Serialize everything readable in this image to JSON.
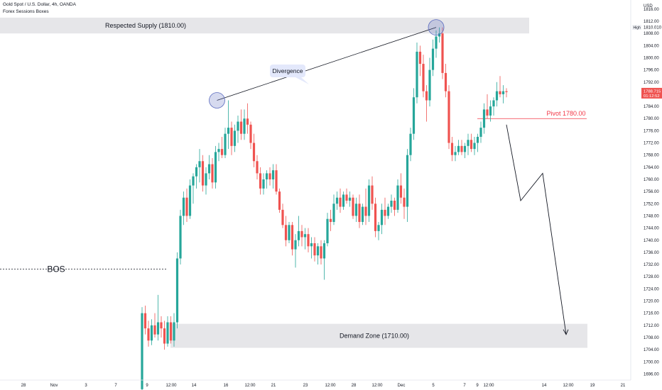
{
  "header": {
    "symbol": "Gold Spot / U.S. Dollar, 4h, OANDA",
    "indicator": "Forex Sessions Boxes"
  },
  "price_axis": {
    "currency": "USD",
    "high_tag": "High",
    "high_value": "1810.010",
    "last_price": "1788.715",
    "countdown": "01:12:52"
  },
  "colors": {
    "up": "#26a69a",
    "down": "#ef5350",
    "zone": "#e6e6e9",
    "pivot": "#f23645",
    "circle": "#5b6bbf",
    "label_box": "#e3e8fb"
  },
  "chart_data": {
    "type": "candlestick",
    "title": "Gold Spot / U.S. Dollar, 4h, OANDA",
    "ylim": [
      1694,
      1819
    ],
    "y_ticks": [
      1696,
      1700,
      1704,
      1708,
      1712,
      1716,
      1720,
      1724,
      1728,
      1732,
      1736,
      1740,
      1744,
      1748,
      1752,
      1756,
      1760,
      1764,
      1768,
      1772,
      1776,
      1780,
      1784,
      1788,
      1792,
      1796,
      1800,
      1804,
      1808,
      1812,
      1816
    ],
    "x_ticks": [
      "28",
      "Nov",
      "3",
      "7",
      "9",
      "12:00",
      "14",
      "16",
      "12:00",
      "21",
      "23",
      "12:00",
      "28",
      "12:00",
      "Dec",
      "5",
      "7",
      "9",
      "12:00",
      "14",
      "12:00",
      "19",
      "21"
    ],
    "candles": [
      [
        1691.0,
        1718.0,
        1689.0,
        1716.0
      ],
      [
        1716.0,
        1718.5,
        1709.0,
        1711.0
      ],
      [
        1711.0,
        1713.5,
        1705.0,
        1707.0
      ],
      [
        1707.0,
        1714.0,
        1705.5,
        1712.0
      ],
      [
        1712.0,
        1716.0,
        1708.0,
        1709.0
      ],
      [
        1709.0,
        1722.0,
        1707.0,
        1713.0
      ],
      [
        1713.0,
        1715.0,
        1708.0,
        1711.0
      ],
      [
        1711.0,
        1713.5,
        1704.0,
        1706.0
      ],
      [
        1706.0,
        1715.0,
        1705.0,
        1713.0
      ],
      [
        1713.0,
        1715.0,
        1706.0,
        1707.0
      ],
      [
        1707.0,
        1716.0,
        1705.0,
        1713.0
      ],
      [
        1713.0,
        1736.0,
        1711.0,
        1734.0
      ],
      [
        1734.0,
        1750.0,
        1732.0,
        1748.0
      ],
      [
        1748.0,
        1756.0,
        1745.0,
        1754.0
      ],
      [
        1754.0,
        1757.0,
        1746.0,
        1748.0
      ],
      [
        1748.0,
        1760.0,
        1747.0,
        1758.0
      ],
      [
        1758.0,
        1762.0,
        1752.0,
        1761.0
      ],
      [
        1761.0,
        1765.0,
        1757.0,
        1764.0
      ],
      [
        1764.0,
        1770.0,
        1759.0,
        1766.0
      ],
      [
        1766.0,
        1768.0,
        1756.0,
        1758.0
      ],
      [
        1758.0,
        1764.0,
        1755.0,
        1762.0
      ],
      [
        1762.0,
        1768.0,
        1760.0,
        1765.0
      ],
      [
        1765.0,
        1767.0,
        1757.0,
        1759.0
      ],
      [
        1759.0,
        1771.0,
        1757.0,
        1769.0
      ],
      [
        1769.0,
        1772.0,
        1766.0,
        1770.0
      ],
      [
        1770.0,
        1774.0,
        1767.0,
        1768.0
      ],
      [
        1768.0,
        1777.0,
        1767.0,
        1775.0
      ],
      [
        1775.0,
        1786.0,
        1770.0,
        1777.0
      ],
      [
        1777.0,
        1779.0,
        1768.0,
        1771.0
      ],
      [
        1771.0,
        1778.0,
        1769.0,
        1776.0
      ],
      [
        1776.0,
        1781.0,
        1772.0,
        1779.0
      ],
      [
        1779.0,
        1783.0,
        1773.0,
        1775.0
      ],
      [
        1775.0,
        1783.0,
        1773.0,
        1780.0
      ],
      [
        1780.0,
        1785.0,
        1775.0,
        1778.0
      ],
      [
        1778.0,
        1779.0,
        1770.0,
        1772.0
      ],
      [
        1772.0,
        1775.0,
        1764.0,
        1766.0
      ],
      [
        1766.0,
        1768.0,
        1760.0,
        1762.0
      ],
      [
        1762.0,
        1764.0,
        1755.0,
        1757.0
      ],
      [
        1757.0,
        1762.0,
        1755.0,
        1760.0
      ],
      [
        1760.0,
        1763.0,
        1757.0,
        1762.0
      ],
      [
        1762.0,
        1764.0,
        1758.0,
        1760.0
      ],
      [
        1760.0,
        1765.0,
        1757.0,
        1763.0
      ],
      [
        1763.0,
        1765.0,
        1755.0,
        1756.0
      ],
      [
        1756.0,
        1757.0,
        1749.0,
        1750.0
      ],
      [
        1750.0,
        1752.0,
        1744.0,
        1745.0
      ],
      [
        1745.0,
        1748.0,
        1738.0,
        1740.0
      ],
      [
        1740.0,
        1746.0,
        1739.0,
        1745.0
      ],
      [
        1745.0,
        1746.0,
        1735.0,
        1737.0
      ],
      [
        1737.0,
        1742.0,
        1731.0,
        1740.0
      ],
      [
        1740.0,
        1748.0,
        1738.0,
        1743.0
      ],
      [
        1743.0,
        1745.0,
        1738.0,
        1741.0
      ],
      [
        1741.0,
        1744.0,
        1737.0,
        1742.0
      ],
      [
        1742.0,
        1744.0,
        1736.0,
        1738.0
      ],
      [
        1738.0,
        1741.0,
        1734.0,
        1739.0
      ],
      [
        1739.0,
        1741.0,
        1733.0,
        1735.0
      ],
      [
        1735.0,
        1739.0,
        1732.0,
        1738.0
      ],
      [
        1738.0,
        1740.0,
        1732.0,
        1734.0
      ],
      [
        1734.0,
        1740.0,
        1727.0,
        1739.0
      ],
      [
        1739.0,
        1749.0,
        1738.0,
        1747.0
      ],
      [
        1747.0,
        1750.0,
        1743.0,
        1746.0
      ],
      [
        1746.0,
        1755.0,
        1745.0,
        1752.0
      ],
      [
        1752.0,
        1756.0,
        1750.0,
        1754.0
      ],
      [
        1754.0,
        1757.0,
        1749.0,
        1751.0
      ],
      [
        1751.0,
        1756.0,
        1750.0,
        1755.0
      ],
      [
        1755.0,
        1757.0,
        1752.0,
        1753.0
      ],
      [
        1753.0,
        1756.0,
        1751.0,
        1754.0
      ],
      [
        1754.0,
        1755.0,
        1747.0,
        1748.0
      ],
      [
        1748.0,
        1754.0,
        1746.0,
        1752.0
      ],
      [
        1752.0,
        1755.0,
        1744.0,
        1746.0
      ],
      [
        1746.0,
        1752.0,
        1745.0,
        1751.0
      ],
      [
        1751.0,
        1757.0,
        1745.0,
        1748.0
      ],
      [
        1748.0,
        1760.0,
        1746.0,
        1758.0
      ],
      [
        1758.0,
        1761.0,
        1750.0,
        1752.0
      ],
      [
        1752.0,
        1754.0,
        1741.0,
        1743.0
      ],
      [
        1743.0,
        1746.0,
        1740.0,
        1745.0
      ],
      [
        1745.0,
        1752.0,
        1742.0,
        1750.0
      ],
      [
        1750.0,
        1754.0,
        1745.0,
        1748.0
      ],
      [
        1748.0,
        1752.0,
        1747.0,
        1751.0
      ],
      [
        1751.0,
        1755.0,
        1749.0,
        1753.0
      ],
      [
        1753.0,
        1754.0,
        1748.0,
        1750.0
      ],
      [
        1750.0,
        1760.0,
        1749.0,
        1758.0
      ],
      [
        1758.0,
        1762.0,
        1752.0,
        1754.0
      ],
      [
        1754.0,
        1757.0,
        1747.0,
        1751.0
      ],
      [
        1751.0,
        1770.0,
        1746.0,
        1768.0
      ],
      [
        1768.0,
        1777.0,
        1766.0,
        1775.0
      ],
      [
        1775.0,
        1790.0,
        1773.0,
        1787.0
      ],
      [
        1787.0,
        1805.0,
        1785.0,
        1802.0
      ],
      [
        1802.0,
        1804.0,
        1794.0,
        1798.0
      ],
      [
        1798.0,
        1801.0,
        1787.0,
        1789.0
      ],
      [
        1789.0,
        1791.0,
        1779.0,
        1786.0
      ],
      [
        1786.0,
        1800.0,
        1784.0,
        1796.0
      ],
      [
        1796.0,
        1806.0,
        1794.0,
        1803.0
      ],
      [
        1803.0,
        1809.0,
        1800.0,
        1807.0
      ],
      [
        1807.0,
        1810.0,
        1805.0,
        1808.0
      ],
      [
        1808.0,
        1810.0,
        1793.0,
        1795.0
      ],
      [
        1795.0,
        1798.0,
        1787.0,
        1789.0
      ],
      [
        1789.0,
        1791.0,
        1770.0,
        1772.0
      ],
      [
        1772.0,
        1774.0,
        1766.0,
        1768.0
      ],
      [
        1768.0,
        1771.0,
        1766.0,
        1769.0
      ],
      [
        1769.0,
        1773.0,
        1768.0,
        1771.0
      ],
      [
        1771.0,
        1773.0,
        1768.0,
        1769.0
      ],
      [
        1769.0,
        1772.0,
        1767.0,
        1771.0
      ],
      [
        1771.0,
        1775.0,
        1768.0,
        1773.0
      ],
      [
        1773.0,
        1775.0,
        1769.0,
        1770.0
      ],
      [
        1770.0,
        1774.0,
        1768.0,
        1772.0
      ],
      [
        1772.0,
        1775.0,
        1769.0,
        1774.0
      ],
      [
        1774.0,
        1779.0,
        1772.0,
        1777.0
      ],
      [
        1777.0,
        1785.0,
        1775.0,
        1783.0
      ],
      [
        1783.0,
        1788.0,
        1780.0,
        1781.0
      ],
      [
        1781.0,
        1786.0,
        1779.0,
        1784.0
      ],
      [
        1784.0,
        1787.0,
        1781.0,
        1786.0
      ],
      [
        1786.0,
        1792.0,
        1784.0,
        1789.0
      ],
      [
        1789.0,
        1794.0,
        1787.0,
        1788.0
      ],
      [
        1788.0,
        1791.0,
        1785.0,
        1789.0
      ],
      [
        1789.0,
        1790.0,
        1787.0,
        1788.7
      ]
    ],
    "zones": [
      {
        "label": "Respected Supply (1810.00)",
        "from": 1808.0,
        "to": 1813.2
      },
      {
        "label": "Demand Zone (1710.00)",
        "from": 1704.6,
        "to": 1712.5
      }
    ],
    "annotations": {
      "divergence": "Divergence",
      "bos": "BOS",
      "bos_level": 1730.5,
      "pivot": "Pivot 1780.00",
      "pivot_level": 1780.0
    },
    "projection": [
      1778,
      1753,
      1762,
      1709
    ]
  }
}
